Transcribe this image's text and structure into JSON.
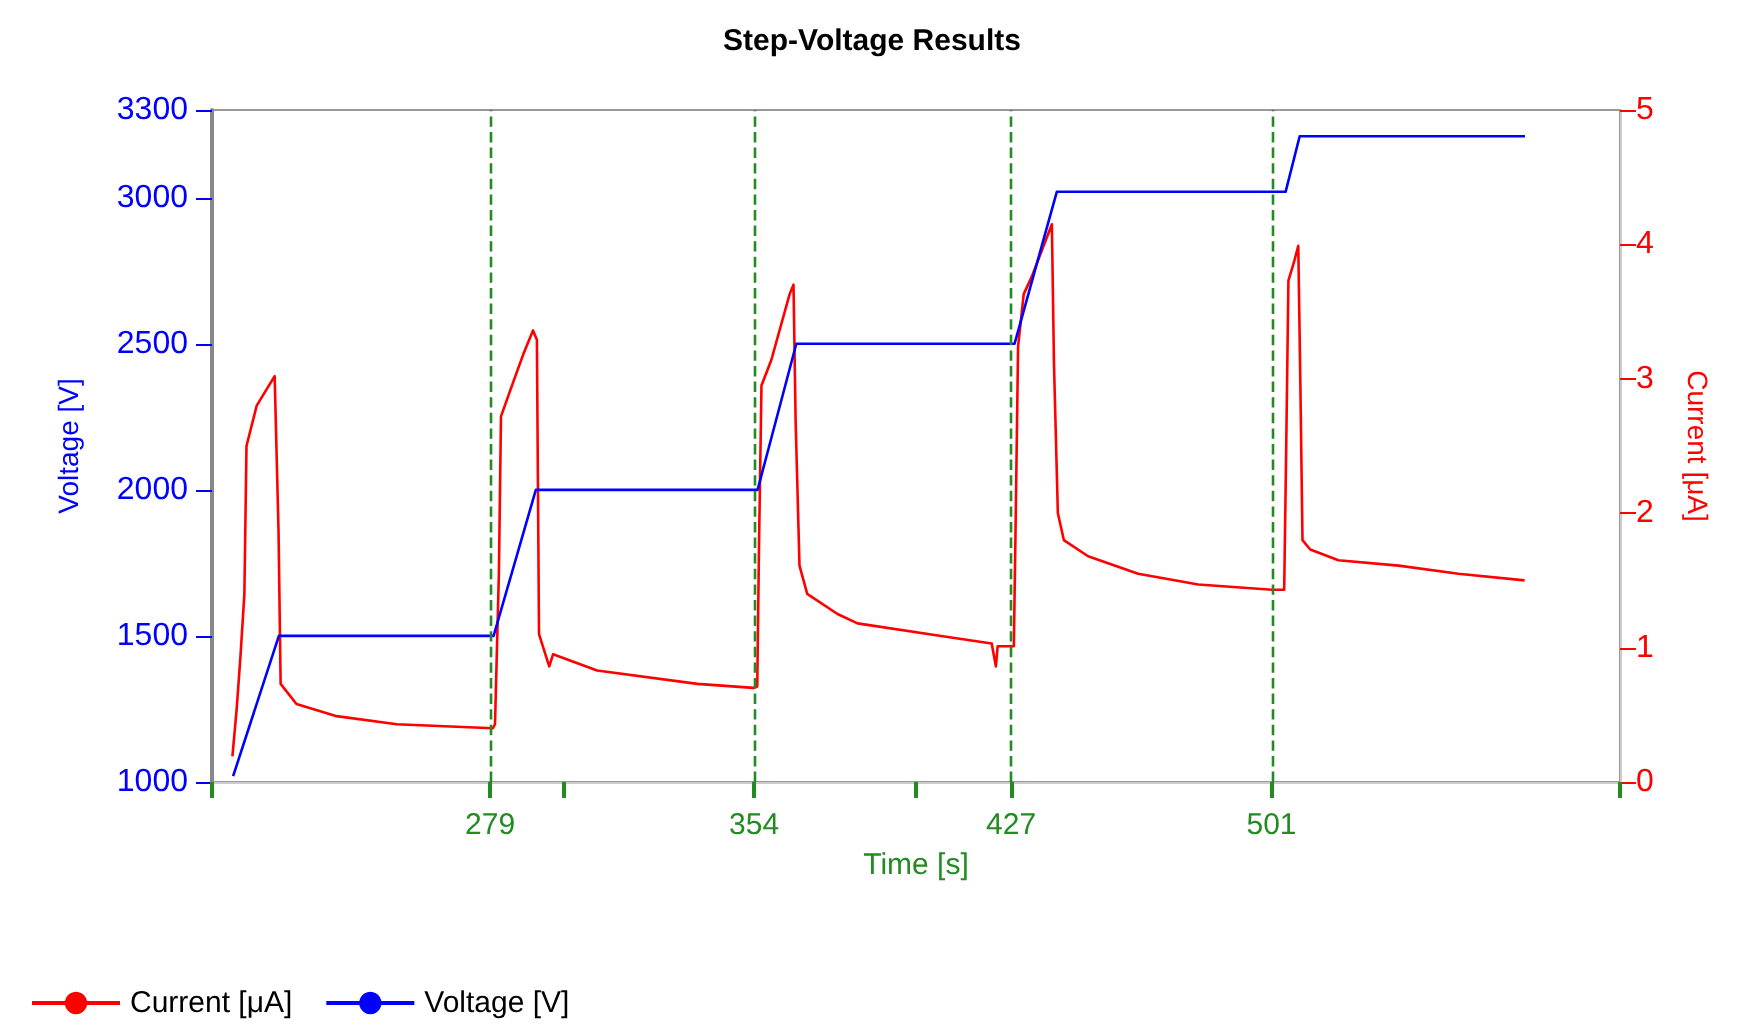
{
  "chart_data": {
    "type": "line",
    "title": "Step-Voltage Results",
    "xlabel": "Time [s]",
    "ylabel": "Voltage [V]",
    "y2label": "Current [μA]",
    "xlim": [
      200,
      600
    ],
    "xticks": [
      {
        "value": 200,
        "label": null
      },
      279,
      {
        "value": 300,
        "label": null
      },
      354,
      {
        "value": 400,
        "label": null
      },
      427,
      501,
      {
        "value": 600,
        "label": null
      }
    ],
    "ylim": [
      1000,
      3300
    ],
    "yticks": [
      1000,
      1500,
      2000,
      2500,
      3000,
      3300
    ],
    "y2lim": [
      0,
      5
    ],
    "y2ticks": [
      0,
      1,
      2,
      3,
      4,
      5
    ],
    "grid": false,
    "legend": "bottom left",
    "marker": "none",
    "line_style": "solid",
    "ref_lines": [
      {
        "axis": "x",
        "value": 279,
        "color": "#228b22",
        "line_style": "dashed"
      },
      {
        "axis": "x",
        "value": 354,
        "color": "#228b22",
        "line_style": "dashed"
      },
      {
        "axis": "x",
        "value": 427,
        "color": "#228b22",
        "line_style": "dashed"
      },
      {
        "axis": "x",
        "value": 501,
        "color": "#228b22",
        "line_style": "dashed"
      }
    ],
    "series": [
      {
        "name": "Current [μA]",
        "color": "#ff0000",
        "axis": "y2",
        "x": [
          205.8,
          207,
          208.1,
          209.2,
          209.8,
          212.7,
          217.8,
          218.9,
          219.5,
          224,
          235.4,
          252.5,
          279.8,
          280.4,
          281.5,
          282.1,
          284.4,
          288.4,
          291.2,
          292.3,
          292.9,
          295.8,
          296.9,
          309.4,
          337.9,
          353.8,
          354.9,
          355.4,
          356.1,
          358.9,
          364.1,
          365.2,
          365.8,
          366.9,
          369.1,
          377.7,
          383.4,
          406.2,
          421.5,
          422.7,
          423.2,
          427.8,
          428.4,
          429,
          430.6,
          432.9,
          438.6,
          439.2,
          440.3,
          442,
          448.9,
          463.1,
          480.2,
          501.2,
          504.6,
          505.2,
          505.8,
          507.5,
          508.6,
          509.2,
          509.8,
          512,
          520,
          537.1,
          554.1,
          572.9
        ],
        "values": [
          0.19,
          0.54,
          0.94,
          1.4,
          2.5,
          2.8,
          3.02,
          1.87,
          0.73,
          0.58,
          0.49,
          0.43,
          0.4,
          0.43,
          1.55,
          2.72,
          2.89,
          3.18,
          3.36,
          3.29,
          1.1,
          0.86,
          0.95,
          0.83,
          0.73,
          0.7,
          0.71,
          1.76,
          2.95,
          3.14,
          3.63,
          3.7,
          2.69,
          1.61,
          1.4,
          1.25,
          1.18,
          1.09,
          1.03,
          0.86,
          1.01,
          1.01,
          2.1,
          3.24,
          3.63,
          3.76,
          4.15,
          3.11,
          2.0,
          1.8,
          1.68,
          1.55,
          1.47,
          1.43,
          1.43,
          2.54,
          3.73,
          3.88,
          3.99,
          2.95,
          1.8,
          1.73,
          1.65,
          1.61,
          1.55,
          1.5
        ]
      },
      {
        "name": "Voltage [V]",
        "color": "#0000ff",
        "x": [
          206,
          219,
          280,
          292,
          355,
          366,
          428,
          440,
          505,
          509,
          573
        ],
        "values": [
          1020,
          1500,
          1500,
          2000,
          2000,
          2500,
          2500,
          3020,
          3020,
          3210,
          3210
        ]
      }
    ]
  }
}
